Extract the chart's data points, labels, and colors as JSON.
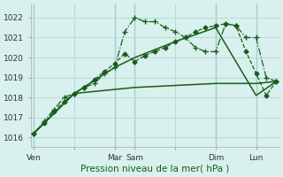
{
  "title": "Pression niveau de la mer( hPa )",
  "ylim": [
    1015.5,
    1022.7
  ],
  "yticks": [
    1016,
    1017,
    1018,
    1019,
    1020,
    1021,
    1022
  ],
  "background_color": "#d8f0ee",
  "grid_color": "#b0d8d4",
  "line_color": "#1a5c1a",
  "vline_color": "#7aaa9a",
  "xlim": [
    -0.3,
    24.3
  ],
  "xtick_positions": [
    0,
    4,
    8,
    10,
    14,
    18,
    22
  ],
  "xtick_labels": [
    "Ven",
    "",
    "Mar",
    "Sam",
    "",
    "Dim",
    "Lun"
  ],
  "vlines": [
    0,
    8,
    10,
    18,
    22
  ],
  "series": [
    {
      "x": [
        0,
        1,
        2,
        3,
        4,
        5,
        6,
        7,
        8,
        9,
        10,
        11,
        12,
        13,
        14,
        15,
        16,
        17,
        18,
        19,
        20,
        21,
        22,
        23,
        24
      ],
      "y": [
        1016.2,
        1016.8,
        1017.4,
        1018.0,
        1018.2,
        1018.5,
        1018.7,
        1019.2,
        1019.5,
        1021.3,
        1022.0,
        1021.8,
        1021.8,
        1021.5,
        1021.3,
        1021.0,
        1020.5,
        1020.3,
        1020.3,
        1021.7,
        1021.6,
        1021.0,
        1021.0,
        1019.0,
        1018.8
      ],
      "linestyle": "-.",
      "marker": "+",
      "markersize": 4.5,
      "linewidth": 0.9
    },
    {
      "x": [
        0,
        1,
        2,
        3,
        4,
        5,
        6,
        7,
        8,
        9,
        10,
        11,
        12,
        13,
        14,
        15,
        16,
        17,
        18,
        19,
        20,
        21,
        22,
        23,
        24
      ],
      "y": [
        1016.2,
        1016.7,
        1017.3,
        1017.8,
        1018.2,
        1018.5,
        1018.9,
        1019.3,
        1019.7,
        1020.2,
        1019.8,
        1020.1,
        1020.3,
        1020.5,
        1020.8,
        1021.0,
        1021.3,
        1021.5,
        1021.6,
        1021.7,
        1021.6,
        1020.3,
        1019.2,
        1018.1,
        1018.8
      ],
      "linestyle": "--",
      "marker": "D",
      "markersize": 2.5,
      "linewidth": 0.9
    },
    {
      "x": [
        0,
        4,
        8,
        10,
        14,
        18,
        22,
        24
      ],
      "y": [
        1016.2,
        1018.2,
        1019.5,
        1020.0,
        1020.8,
        1021.5,
        1018.1,
        1018.8
      ],
      "linestyle": "-",
      "marker": null,
      "markersize": 0,
      "linewidth": 1.1
    },
    {
      "x": [
        0,
        4,
        8,
        10,
        14,
        18,
        22,
        24
      ],
      "y": [
        1016.2,
        1018.2,
        1018.4,
        1018.5,
        1018.6,
        1018.7,
        1018.7,
        1018.8
      ],
      "linestyle": "-",
      "marker": null,
      "markersize": 0,
      "linewidth": 1.1
    }
  ]
}
